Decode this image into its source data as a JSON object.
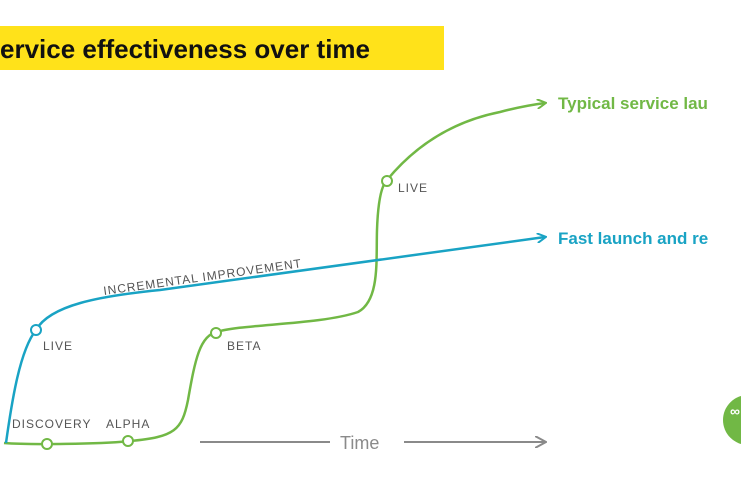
{
  "title": "ervice effectiveness over time",
  "colors": {
    "typical": "#71b845",
    "fast": "#19a3c4",
    "time_axis": "#8a8a8a",
    "banner": "#ffe21a",
    "stage_text": "#555555"
  },
  "legend": {
    "typical": "Typical service lau",
    "fast": "Fast launch and re"
  },
  "stages": {
    "discovery": "DISCOVERY",
    "alpha": "ALPHA",
    "beta": "BETA",
    "live_typical": "LIVE",
    "live_fast": "LIVE"
  },
  "annotation": "INCREMENTAL IMPROVEMENT",
  "time_label": "Time",
  "logo": {
    "icon": "link-icon"
  }
}
